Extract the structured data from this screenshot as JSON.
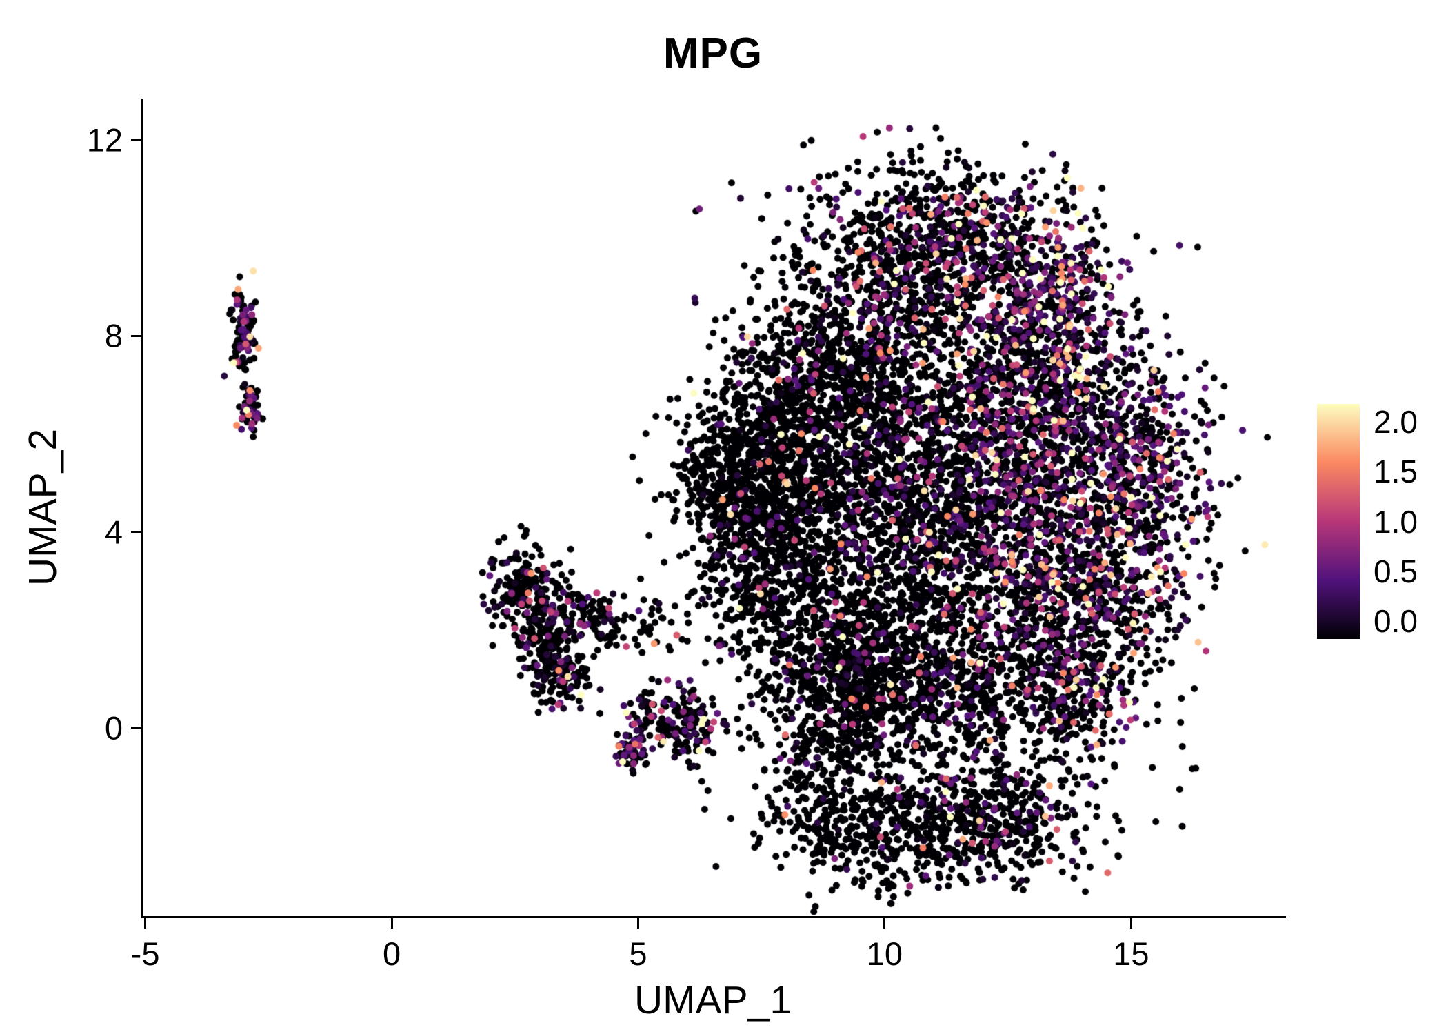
{
  "title": "MPG",
  "chart_data": {
    "type": "scatter",
    "title": "MPG",
    "xlabel": "UMAP_1",
    "ylabel": "UMAP_2",
    "xlim": [
      -5.05,
      18.1
    ],
    "ylim": [
      -3.85,
      12.85
    ],
    "xticks": [
      -5,
      0,
      5,
      10,
      15
    ],
    "xtick_labels": [
      "-5",
      "0",
      "5",
      "10",
      "15"
    ],
    "yticks": [
      0,
      4,
      8,
      12
    ],
    "ytick_labels": [
      "0",
      "4",
      "8",
      "12"
    ],
    "grid": false,
    "point_radius_px": 5,
    "seed": 42,
    "color_scale": {
      "name": "magma",
      "domain": [
        0,
        2
      ],
      "stops": [
        "#000004",
        "#51127c",
        "#b73779",
        "#fb8861",
        "#fcfdbf"
      ]
    },
    "legend": {
      "position": "right",
      "tick_values": [
        2.0,
        1.5,
        1.0,
        0.5,
        0.0
      ],
      "tick_labels": [
        "2.0",
        "1.5",
        "1.0",
        "0.5",
        "0.0"
      ],
      "gradient_bottom_to_top": [
        "#000004",
        "#51127c",
        "#b73779",
        "#fb8861",
        "#fcfdbf"
      ]
    },
    "clusters": [
      {
        "id": "isolated-left-a",
        "cx": -3.0,
        "cy": 8.1,
        "sx": 0.13,
        "sy": 0.45,
        "n": 100,
        "p0": 0.5,
        "m": 0.6
      },
      {
        "id": "isolated-left-b",
        "cx": -2.85,
        "cy": 6.5,
        "sx": 0.11,
        "sy": 0.22,
        "n": 55,
        "p0": 0.45,
        "m": 0.7
      },
      {
        "id": "mid-a",
        "cx": 2.65,
        "cy": 2.85,
        "sx": 0.38,
        "sy": 0.5,
        "n": 170,
        "p0": 0.82,
        "m": 0.5
      },
      {
        "id": "mid-b",
        "cx": 3.15,
        "cy": 1.9,
        "sx": 0.32,
        "sy": 0.45,
        "n": 140,
        "p0": 0.8,
        "m": 0.5
      },
      {
        "id": "mid-c",
        "cx": 3.4,
        "cy": 1.05,
        "sx": 0.3,
        "sy": 0.35,
        "n": 110,
        "p0": 0.75,
        "m": 0.55
      },
      {
        "id": "mid-d",
        "cx": 4.0,
        "cy": 2.35,
        "sx": 0.45,
        "sy": 0.3,
        "n": 70,
        "p0": 0.85,
        "m": 0.5
      },
      {
        "id": "mid-e",
        "cx": 4.8,
        "cy": 2.0,
        "sx": 0.55,
        "sy": 0.3,
        "n": 55,
        "p0": 0.82,
        "m": 0.5
      },
      {
        "id": "mid-f",
        "cx": 6.0,
        "cy": 0.1,
        "sx": 0.38,
        "sy": 0.32,
        "n": 130,
        "p0": 0.68,
        "m": 0.6
      },
      {
        "id": "mid-g",
        "cx": 4.85,
        "cy": -0.5,
        "sx": 0.16,
        "sy": 0.22,
        "n": 65,
        "p0": 0.5,
        "m": 0.7
      },
      {
        "id": "mid-h",
        "cx": 5.15,
        "cy": 0.3,
        "sx": 0.3,
        "sy": 0.25,
        "n": 45,
        "p0": 0.75,
        "m": 0.5
      },
      {
        "id": "main-left-tip",
        "cx": 6.9,
        "cy": 4.9,
        "sx": 0.55,
        "sy": 0.8,
        "n": 260,
        "p0": 0.93,
        "m": 0.45
      },
      {
        "id": "main-left",
        "cx": 7.9,
        "cy": 5.4,
        "sx": 0.9,
        "sy": 1.1,
        "n": 750,
        "p0": 0.92,
        "m": 0.45
      },
      {
        "id": "main-left-low",
        "cx": 7.6,
        "cy": 3.1,
        "sx": 0.8,
        "sy": 0.9,
        "n": 450,
        "p0": 0.9,
        "m": 0.45
      },
      {
        "id": "main-upper-left",
        "cx": 8.6,
        "cy": 7.4,
        "sx": 0.9,
        "sy": 0.9,
        "n": 420,
        "p0": 0.88,
        "m": 0.5
      },
      {
        "id": "main-bottom-center",
        "cx": 9.4,
        "cy": 0.9,
        "sx": 1.0,
        "sy": 0.95,
        "n": 850,
        "p0": 0.88,
        "m": 0.5
      },
      {
        "id": "main-bottom-left",
        "cx": 8.8,
        "cy": -1.4,
        "sx": 0.6,
        "sy": 0.8,
        "n": 200,
        "p0": 0.9,
        "m": 0.5
      },
      {
        "id": "main-center-low",
        "cx": 10.4,
        "cy": 2.6,
        "sx": 1.2,
        "sy": 1.1,
        "n": 550,
        "p0": 0.85,
        "m": 0.5
      },
      {
        "id": "main-center",
        "cx": 9.9,
        "cy": 5.6,
        "sx": 1.0,
        "sy": 1.1,
        "n": 520,
        "p0": 0.82,
        "m": 0.55
      },
      {
        "id": "main-upper-center",
        "cx": 9.9,
        "cy": 8.6,
        "sx": 1.0,
        "sy": 1.0,
        "n": 480,
        "p0": 0.8,
        "m": 0.55
      },
      {
        "id": "main-top",
        "cx": 10.8,
        "cy": 10.3,
        "sx": 1.2,
        "sy": 0.75,
        "n": 380,
        "p0": 0.78,
        "m": 0.6
      },
      {
        "id": "main-top-right",
        "cx": 12.2,
        "cy": 9.3,
        "sx": 1.1,
        "sy": 0.95,
        "n": 500,
        "p0": 0.6,
        "m": 0.7
      },
      {
        "id": "warm-streak",
        "cx": 13.6,
        "cy": 9.0,
        "sx": 0.5,
        "sy": 0.7,
        "n": 120,
        "p0": 0.35,
        "m": 0.9
      },
      {
        "id": "main-right-upper",
        "cx": 13.3,
        "cy": 7.6,
        "sx": 1.0,
        "sy": 0.9,
        "n": 450,
        "p0": 0.55,
        "m": 0.65
      },
      {
        "id": "main-mid-right",
        "cx": 12.2,
        "cy": 6.0,
        "sx": 1.0,
        "sy": 0.9,
        "n": 400,
        "p0": 0.7,
        "m": 0.6
      },
      {
        "id": "main-right",
        "cx": 13.9,
        "cy": 5.3,
        "sx": 1.1,
        "sy": 1.1,
        "n": 600,
        "p0": 0.55,
        "m": 0.65
      },
      {
        "id": "main-far-right",
        "cx": 15.3,
        "cy": 5.0,
        "sx": 0.7,
        "sy": 1.3,
        "n": 350,
        "p0": 0.55,
        "m": 0.6
      },
      {
        "id": "main-center-right-low",
        "cx": 12.6,
        "cy": 3.6,
        "sx": 1.0,
        "sy": 0.9,
        "n": 400,
        "p0": 0.72,
        "m": 0.6
      },
      {
        "id": "main-right-low",
        "cx": 14.2,
        "cy": 2.6,
        "sx": 0.9,
        "sy": 0.8,
        "n": 380,
        "p0": 0.62,
        "m": 0.6
      },
      {
        "id": "main-bottom-right",
        "cx": 12.1,
        "cy": 0.7,
        "sx": 1.3,
        "sy": 0.8,
        "n": 480,
        "p0": 0.75,
        "m": 0.6
      },
      {
        "id": "main-bottom-right2",
        "cx": 13.9,
        "cy": 0.9,
        "sx": 0.7,
        "sy": 0.7,
        "n": 250,
        "p0": 0.65,
        "m": 0.6
      },
      {
        "id": "bottom-lobe",
        "cx": 10.6,
        "cy": -2.0,
        "sx": 1.2,
        "sy": 0.65,
        "n": 420,
        "p0": 0.88,
        "m": 0.5
      },
      {
        "id": "bottom-lobe-right",
        "cx": 12.4,
        "cy": -1.9,
        "sx": 0.9,
        "sy": 0.6,
        "n": 300,
        "p0": 0.78,
        "m": 0.55
      },
      {
        "id": "main-core",
        "cx": 11.0,
        "cy": 4.3,
        "sx": 0.8,
        "sy": 0.8,
        "n": 300,
        "p0": 0.8,
        "m": 0.55
      },
      {
        "id": "halo",
        "cx": 11.2,
        "cy": 4.6,
        "sx": 3.6,
        "sy": 3.8,
        "n": 500,
        "p0": 0.8,
        "m": 0.55,
        "clip": [
          6.0,
          16.6,
          -3.2,
          11.6
        ]
      }
    ]
  }
}
